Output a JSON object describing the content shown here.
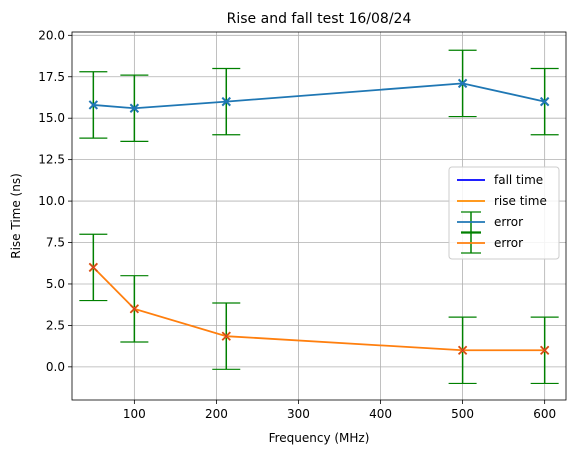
{
  "chart_data": {
    "type": "line",
    "title": "Rise and fall test 16/08/24",
    "xlabel": "Frequency (MHz)",
    "ylabel": "Rise Time (ns)",
    "xlim": [
      24,
      626
    ],
    "ylim": [
      -2.0,
      20.2
    ],
    "xticks": [
      100,
      200,
      300,
      400,
      500,
      600
    ],
    "yticks": [
      0.0,
      2.5,
      5.0,
      7.5,
      10.0,
      12.5,
      15.0,
      17.5,
      20.0
    ],
    "grid": true,
    "legend_position": "center-right",
    "x": [
      50,
      100,
      212,
      500,
      600
    ],
    "series": [
      {
        "name": "fall time",
        "values": [
          15.8,
          15.6,
          16.0,
          17.1,
          16.0
        ],
        "color": "#1f77b4",
        "marker": "x",
        "error": 2.0,
        "legend_color": "#0000ff"
      },
      {
        "name": "rise time",
        "values": [
          6.0,
          3.5,
          1.85,
          1.0,
          1.0
        ],
        "color": "#ff7f0e",
        "marker": "x",
        "error": 2.0,
        "legend_color": "#ff8c00"
      }
    ],
    "error_color": "#008000",
    "legend": [
      {
        "label": "fall time",
        "kind": "line",
        "color": "#0000ff"
      },
      {
        "label": "rise time",
        "kind": "line",
        "color": "#ff8c00"
      },
      {
        "label": "error",
        "kind": "errorbar",
        "color": "#1f77b4",
        "error_color": "#008000"
      },
      {
        "label": "error",
        "kind": "errorbar",
        "color": "#ff7f0e",
        "error_color": "#008000"
      }
    ]
  }
}
